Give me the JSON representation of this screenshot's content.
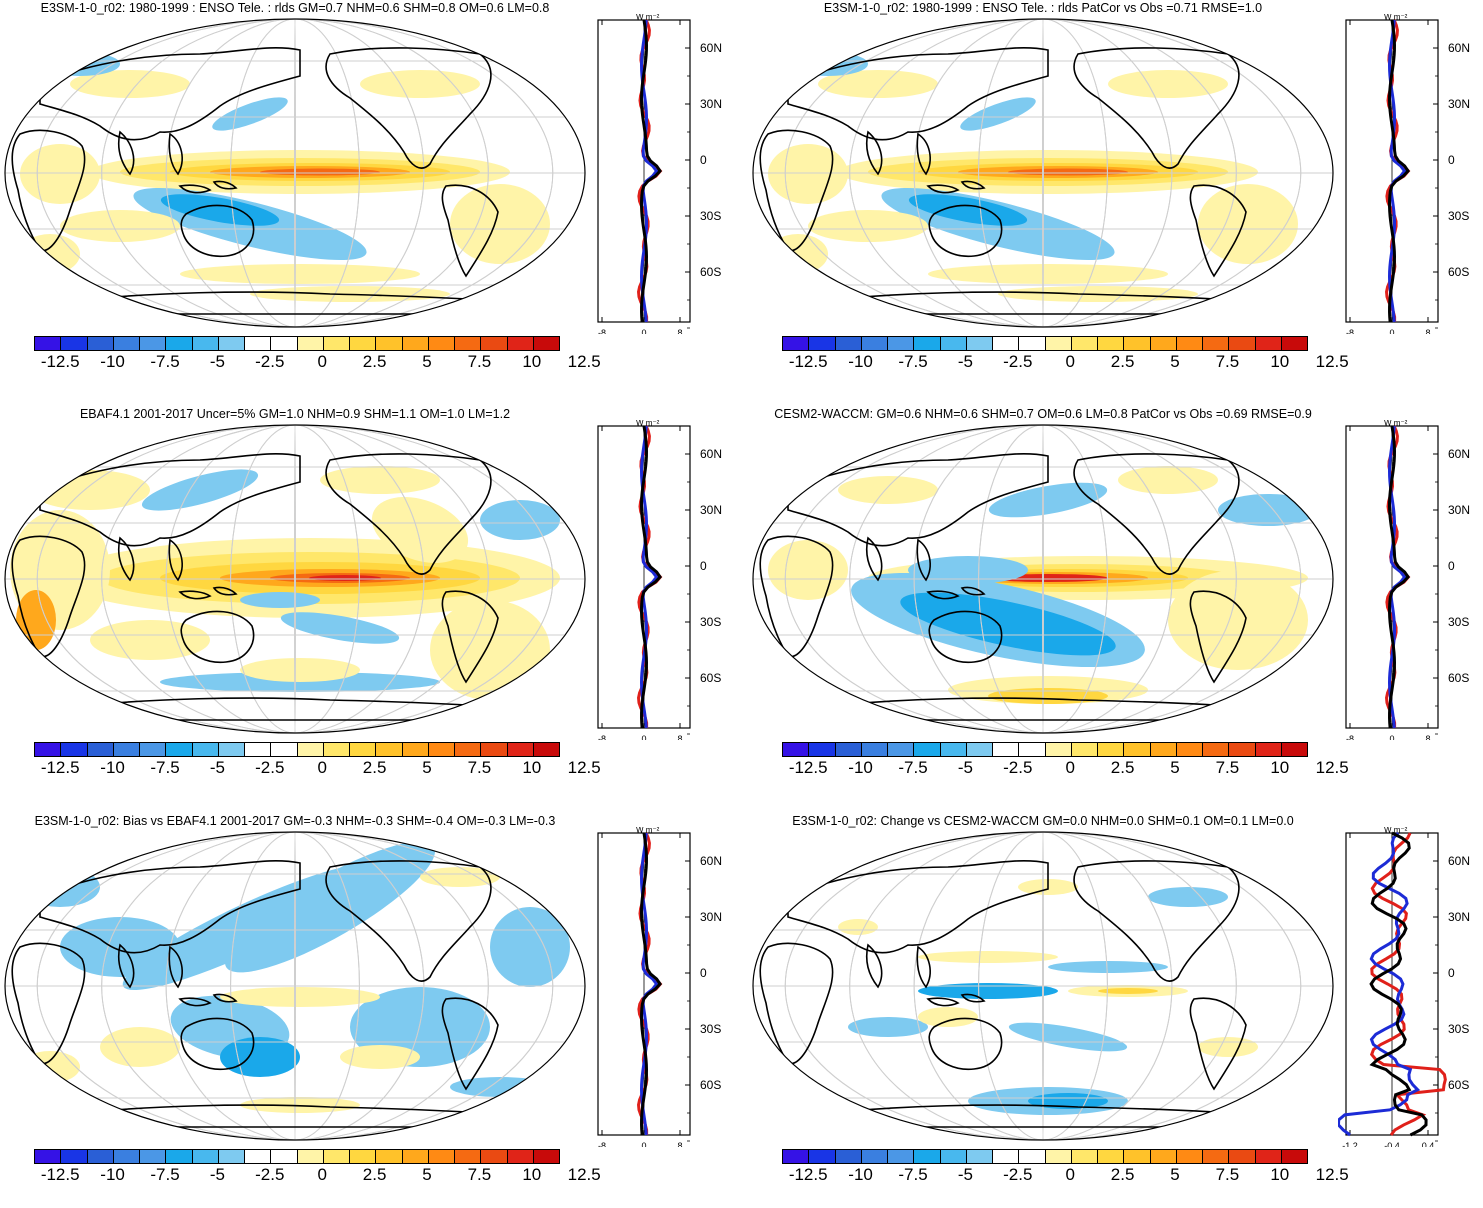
{
  "colors": {
    "colorbar": [
      "#3512e6",
      "#1935e6",
      "#2a5fd6",
      "#3a7fe0",
      "#4b97e6",
      "#1aa8ea",
      "#48b8ee",
      "#7ecaf0",
      "#ffffff",
      "#ffffff",
      "#fff4a8",
      "#ffe76a",
      "#ffd740",
      "#ffc22a",
      "#ffa81c",
      "#ff8a14",
      "#f56a12",
      "#ea4a12",
      "#e02418",
      "#c80a0a"
    ],
    "ocean": "#ffffff",
    "land_outline": "#000000",
    "obs_line": "#000000",
    "model_line": "#e0201a",
    "alt_line": "#1c2bd6"
  },
  "colorbar_labels": [
    "-12.5",
    "-10",
    "-7.5",
    "-5",
    "-2.5",
    "0",
    "2.5",
    "5",
    "7.5",
    "10",
    "12.5"
  ],
  "panels": [
    {
      "id": "p1",
      "title": "E3SM-1-0_r02: 1980-1999 : ENSO Tele. : rlds GM=0.7 NHM=0.6 SHM=0.8 OM=0.6 LM=0.8",
      "zonal_units": "W m⁻²",
      "zonal_ticks": [
        "-8",
        "0",
        "8"
      ],
      "lat_labels": [
        "60N",
        "30N",
        "0",
        "30S",
        "60S"
      ],
      "pattern": "enso_model"
    },
    {
      "id": "p2",
      "title": "E3SM-1-0_r02: 1980-1999 : ENSO Tele. : rlds PatCor vs Obs =0.71 RMSE=1.0",
      "zonal_units": "W m⁻²",
      "zonal_ticks": [
        "-8",
        "0",
        "8"
      ],
      "lat_labels": [
        "60N",
        "30N",
        "0",
        "30S",
        "60S"
      ],
      "pattern": "enso_model"
    },
    {
      "id": "p3",
      "title": "EBAF4.1 2001-2017 Uncer=5% GM=1.0 NHM=0.9 SHM=1.1 OM=1.0 LM=1.2",
      "zonal_units": "W m⁻²",
      "zonal_ticks": [
        "-8",
        "0",
        "8"
      ],
      "lat_labels": [
        "60N",
        "30N",
        "0",
        "30S",
        "60S"
      ],
      "pattern": "enso_obs"
    },
    {
      "id": "p4",
      "title": "CESM2-WACCM: GM=0.6 NHM=0.6 SHM=0.7 OM=0.6 LM=0.8 PatCor vs Obs =0.69 RMSE=0.9",
      "zonal_units": "W m⁻²",
      "zonal_ticks": [
        "-8",
        "0",
        "8"
      ],
      "lat_labels": [
        "60N",
        "30N",
        "0",
        "30S",
        "60S"
      ],
      "pattern": "enso_cesm"
    },
    {
      "id": "p5",
      "title": "E3SM-1-0_r02: Bias vs EBAF4.1 2001-2017 GM=-0.3 NHM=-0.3 SHM=-0.4 OM=-0.3 LM=-0.3",
      "zonal_units": "W m⁻²",
      "zonal_ticks": [
        "-8",
        "0",
        "8"
      ],
      "lat_labels": [
        "60N",
        "30N",
        "0",
        "30S",
        "60S"
      ],
      "pattern": "bias"
    },
    {
      "id": "p6",
      "title": "E3SM-1-0_r02: Change vs CESM2-WACCM GM=0.0 NHM=0.0 SHM=0.1 OM=0.1 LM=0.0",
      "zonal_units": "W m⁻²",
      "zonal_ticks": [
        "-1.2",
        "-0.4",
        "0.4"
      ],
      "lat_labels": [
        "60N",
        "30N",
        "0",
        "30S",
        "60S"
      ],
      "pattern": "change"
    }
  ]
}
